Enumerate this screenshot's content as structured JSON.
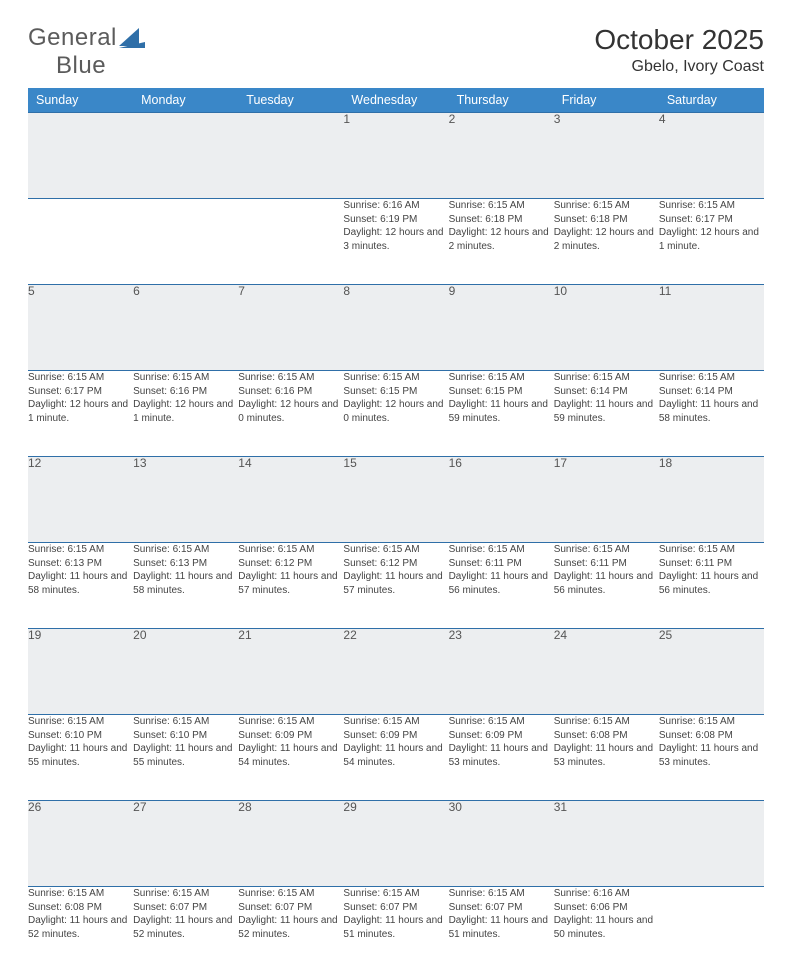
{
  "brand": {
    "part1": "General",
    "part2": "Blue"
  },
  "title": "October 2025",
  "location": "Gbelo, Ivory Coast",
  "colors": {
    "header_bg": "#3a87c8",
    "header_text": "#ffffff",
    "rule": "#2f6fa8",
    "daynum_bg": "#eceef0",
    "text": "#444444",
    "brand_gray": "#5b5b5b",
    "brand_blue": "#2f6fa8"
  },
  "weekdays": [
    "Sunday",
    "Monday",
    "Tuesday",
    "Wednesday",
    "Thursday",
    "Friday",
    "Saturday"
  ],
  "weeks": [
    [
      null,
      null,
      null,
      {
        "n": "1",
        "sr": "6:16 AM",
        "ss": "6:19 PM",
        "dl": "12 hours and 3 minutes."
      },
      {
        "n": "2",
        "sr": "6:15 AM",
        "ss": "6:18 PM",
        "dl": "12 hours and 2 minutes."
      },
      {
        "n": "3",
        "sr": "6:15 AM",
        "ss": "6:18 PM",
        "dl": "12 hours and 2 minutes."
      },
      {
        "n": "4",
        "sr": "6:15 AM",
        "ss": "6:17 PM",
        "dl": "12 hours and 1 minute."
      }
    ],
    [
      {
        "n": "5",
        "sr": "6:15 AM",
        "ss": "6:17 PM",
        "dl": "12 hours and 1 minute."
      },
      {
        "n": "6",
        "sr": "6:15 AM",
        "ss": "6:16 PM",
        "dl": "12 hours and 1 minute."
      },
      {
        "n": "7",
        "sr": "6:15 AM",
        "ss": "6:16 PM",
        "dl": "12 hours and 0 minutes."
      },
      {
        "n": "8",
        "sr": "6:15 AM",
        "ss": "6:15 PM",
        "dl": "12 hours and 0 minutes."
      },
      {
        "n": "9",
        "sr": "6:15 AM",
        "ss": "6:15 PM",
        "dl": "11 hours and 59 minutes."
      },
      {
        "n": "10",
        "sr": "6:15 AM",
        "ss": "6:14 PM",
        "dl": "11 hours and 59 minutes."
      },
      {
        "n": "11",
        "sr": "6:15 AM",
        "ss": "6:14 PM",
        "dl": "11 hours and 58 minutes."
      }
    ],
    [
      {
        "n": "12",
        "sr": "6:15 AM",
        "ss": "6:13 PM",
        "dl": "11 hours and 58 minutes."
      },
      {
        "n": "13",
        "sr": "6:15 AM",
        "ss": "6:13 PM",
        "dl": "11 hours and 58 minutes."
      },
      {
        "n": "14",
        "sr": "6:15 AM",
        "ss": "6:12 PM",
        "dl": "11 hours and 57 minutes."
      },
      {
        "n": "15",
        "sr": "6:15 AM",
        "ss": "6:12 PM",
        "dl": "11 hours and 57 minutes."
      },
      {
        "n": "16",
        "sr": "6:15 AM",
        "ss": "6:11 PM",
        "dl": "11 hours and 56 minutes."
      },
      {
        "n": "17",
        "sr": "6:15 AM",
        "ss": "6:11 PM",
        "dl": "11 hours and 56 minutes."
      },
      {
        "n": "18",
        "sr": "6:15 AM",
        "ss": "6:11 PM",
        "dl": "11 hours and 56 minutes."
      }
    ],
    [
      {
        "n": "19",
        "sr": "6:15 AM",
        "ss": "6:10 PM",
        "dl": "11 hours and 55 minutes."
      },
      {
        "n": "20",
        "sr": "6:15 AM",
        "ss": "6:10 PM",
        "dl": "11 hours and 55 minutes."
      },
      {
        "n": "21",
        "sr": "6:15 AM",
        "ss": "6:09 PM",
        "dl": "11 hours and 54 minutes."
      },
      {
        "n": "22",
        "sr": "6:15 AM",
        "ss": "6:09 PM",
        "dl": "11 hours and 54 minutes."
      },
      {
        "n": "23",
        "sr": "6:15 AM",
        "ss": "6:09 PM",
        "dl": "11 hours and 53 minutes."
      },
      {
        "n": "24",
        "sr": "6:15 AM",
        "ss": "6:08 PM",
        "dl": "11 hours and 53 minutes."
      },
      {
        "n": "25",
        "sr": "6:15 AM",
        "ss": "6:08 PM",
        "dl": "11 hours and 53 minutes."
      }
    ],
    [
      {
        "n": "26",
        "sr": "6:15 AM",
        "ss": "6:08 PM",
        "dl": "11 hours and 52 minutes."
      },
      {
        "n": "27",
        "sr": "6:15 AM",
        "ss": "6:07 PM",
        "dl": "11 hours and 52 minutes."
      },
      {
        "n": "28",
        "sr": "6:15 AM",
        "ss": "6:07 PM",
        "dl": "11 hours and 52 minutes."
      },
      {
        "n": "29",
        "sr": "6:15 AM",
        "ss": "6:07 PM",
        "dl": "11 hours and 51 minutes."
      },
      {
        "n": "30",
        "sr": "6:15 AM",
        "ss": "6:07 PM",
        "dl": "11 hours and 51 minutes."
      },
      {
        "n": "31",
        "sr": "6:16 AM",
        "ss": "6:06 PM",
        "dl": "11 hours and 50 minutes."
      },
      null
    ]
  ],
  "labels": {
    "sunrise": "Sunrise:",
    "sunset": "Sunset:",
    "daylight": "Daylight:"
  }
}
